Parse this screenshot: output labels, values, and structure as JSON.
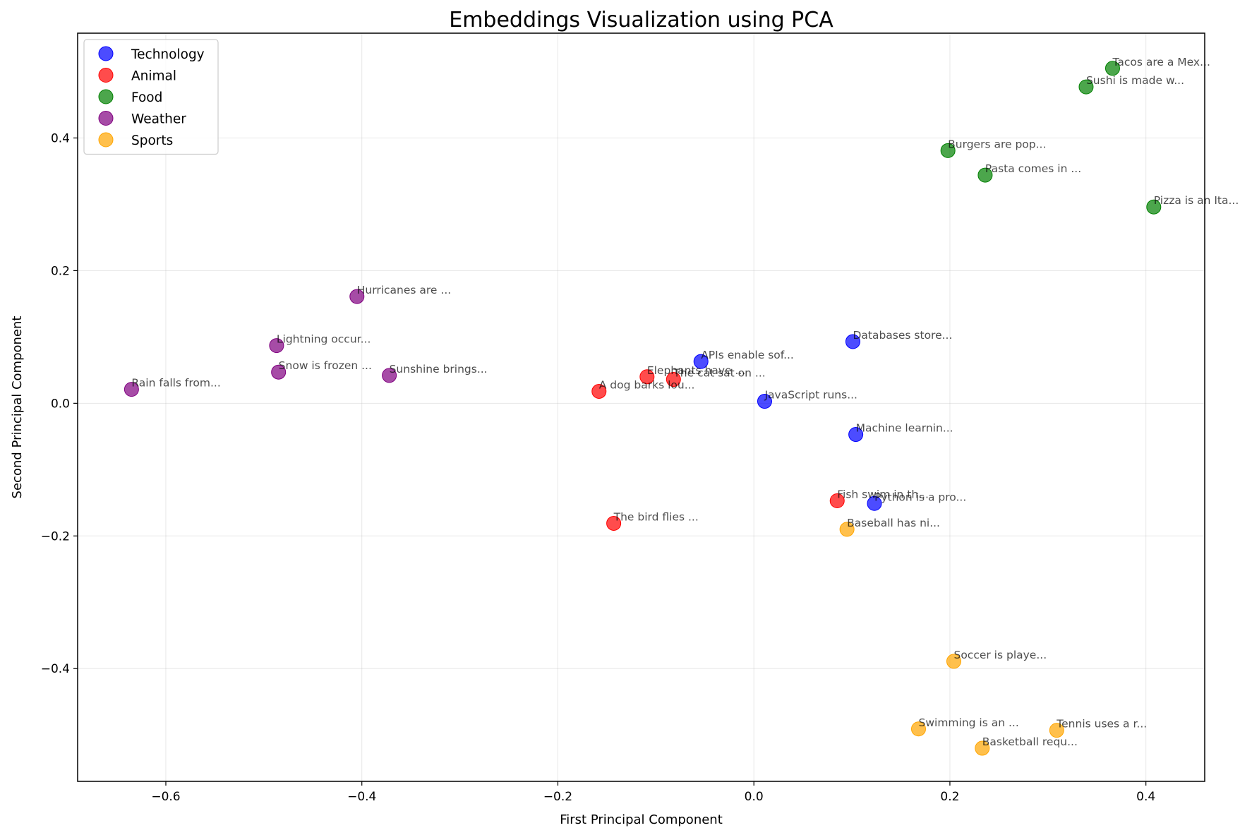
{
  "chart_data": {
    "type": "scatter",
    "title": "Embeddings Visualization using PCA",
    "xlabel": "First Principal Component",
    "ylabel": "Second Principal Component",
    "xlim": [
      -0.69,
      0.46
    ],
    "ylim": [
      -0.57,
      0.558
    ],
    "x_ticks": [
      -0.6,
      -0.4,
      -0.2,
      0.0,
      0.2,
      0.4
    ],
    "x_tick_labels": [
      "−0.6",
      "−0.4",
      "−0.2",
      "0.0",
      "0.2",
      "0.4"
    ],
    "y_ticks": [
      -0.4,
      -0.2,
      0.0,
      0.2,
      0.4
    ],
    "y_tick_labels": [
      "−0.4",
      "−0.2",
      "0.0",
      "0.2",
      "0.4"
    ],
    "grid": true,
    "legend_position": "top-left",
    "series": [
      {
        "name": "Technology",
        "color": "#0000ff",
        "points": [
          {
            "x": -0.054,
            "y": 0.063,
            "label": "APIs enable sof..."
          },
          {
            "x": 0.101,
            "y": 0.093,
            "label": "Databases store..."
          },
          {
            "x": 0.011,
            "y": 0.003,
            "label": "JavaScript runs..."
          },
          {
            "x": 0.104,
            "y": -0.047,
            "label": "Machine learnin..."
          },
          {
            "x": 0.123,
            "y": -0.151,
            "label": "Python is a pro..."
          }
        ]
      },
      {
        "name": "Animal",
        "color": "#ff0000",
        "points": [
          {
            "x": -0.109,
            "y": 0.04,
            "label": "Elephants have ..."
          },
          {
            "x": -0.082,
            "y": 0.036,
            "label": "The cat sat on ..."
          },
          {
            "x": -0.158,
            "y": 0.018,
            "label": "A dog barks lou..."
          },
          {
            "x": 0.085,
            "y": -0.147,
            "label": "Fish swim in th..."
          },
          {
            "x": -0.143,
            "y": -0.181,
            "label": "The bird flies ..."
          }
        ]
      },
      {
        "name": "Food",
        "color": "#008000",
        "points": [
          {
            "x": 0.366,
            "y": 0.505,
            "label": "Tacos are a Mex..."
          },
          {
            "x": 0.339,
            "y": 0.477,
            "label": "Sushi is made w..."
          },
          {
            "x": 0.198,
            "y": 0.381,
            "label": "Burgers are pop..."
          },
          {
            "x": 0.236,
            "y": 0.344,
            "label": "Pasta comes in ..."
          },
          {
            "x": 0.408,
            "y": 0.296,
            "label": "Pizza is an Ita..."
          }
        ]
      },
      {
        "name": "Weather",
        "color": "#800080",
        "points": [
          {
            "x": -0.405,
            "y": 0.161,
            "label": "Hurricanes are ..."
          },
          {
            "x": -0.487,
            "y": 0.087,
            "label": "Lightning occur..."
          },
          {
            "x": -0.485,
            "y": 0.047,
            "label": "Snow is frozen ..."
          },
          {
            "x": -0.372,
            "y": 0.042,
            "label": "Sunshine brings..."
          },
          {
            "x": -0.635,
            "y": 0.021,
            "label": "Rain falls from..."
          }
        ]
      },
      {
        "name": "Sports",
        "color": "#ffa500",
        "points": [
          {
            "x": 0.095,
            "y": -0.19,
            "label": "Baseball has ni..."
          },
          {
            "x": 0.204,
            "y": -0.389,
            "label": "Soccer is playe..."
          },
          {
            "x": 0.168,
            "y": -0.491,
            "label": "Swimming is an ..."
          },
          {
            "x": 0.309,
            "y": -0.493,
            "label": "Tennis uses a r..."
          },
          {
            "x": 0.233,
            "y": -0.52,
            "label": "Basketball requ..."
          }
        ]
      }
    ]
  }
}
